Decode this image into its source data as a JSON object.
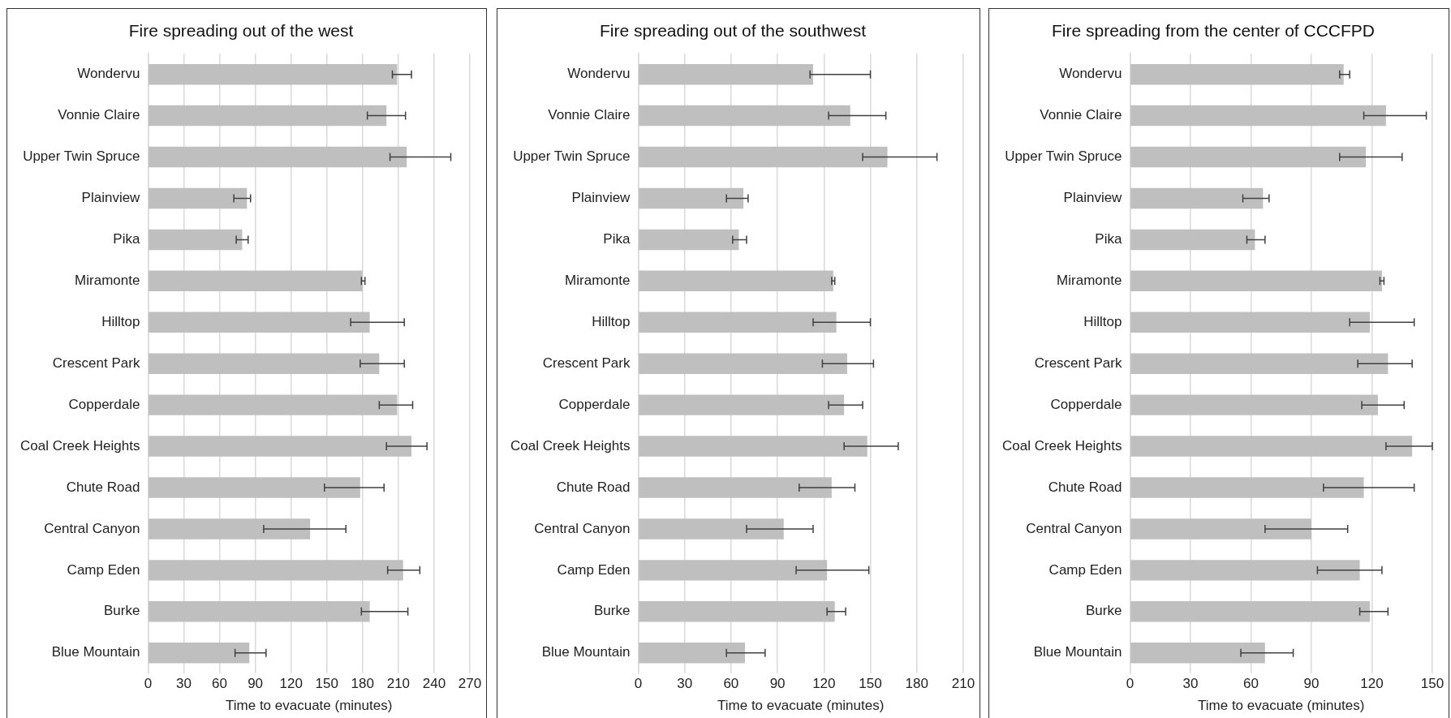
{
  "chart_data": [
    {
      "type": "bar",
      "orientation": "horizontal",
      "title": "Fire spreading out of the west",
      "xlabel": "Time to evacuate (minutes)",
      "color": "#bfbfbf",
      "grid": "x",
      "categories": [
        "Wondervu",
        "Vonnie Claire",
        "Upper Twin Spruce",
        "Plainview",
        "Pika",
        "Miramonte",
        "Hilltop",
        "Crescent Park",
        "Copperdale",
        "Coal Creek Heights",
        "Chute Road",
        "Central Canyon",
        "Camp Eden",
        "Burke",
        "Blue Mountain"
      ],
      "values": [
        209,
        200,
        217,
        83,
        79,
        180,
        186,
        194,
        209,
        221,
        178,
        136,
        214,
        186,
        85
      ],
      "errors": [
        [
          205,
          221
        ],
        [
          184,
          216
        ],
        [
          203,
          254
        ],
        [
          72,
          86
        ],
        [
          74,
          84
        ],
        [
          179,
          182
        ],
        [
          170,
          215
        ],
        [
          178,
          215
        ],
        [
          194,
          222
        ],
        [
          200,
          234
        ],
        [
          148,
          198
        ],
        [
          97,
          166
        ],
        [
          201,
          228
        ],
        [
          179,
          218
        ],
        [
          73,
          99
        ]
      ],
      "xlim": [
        0,
        270
      ],
      "xticks": [
        0,
        30,
        60,
        90,
        120,
        150,
        180,
        210,
        240,
        270
      ]
    },
    {
      "type": "bar",
      "orientation": "horizontal",
      "title": "Fire spreading out of the southwest",
      "xlabel": "Time to evacuate (minutes)",
      "color": "#bfbfbf",
      "grid": "x",
      "categories": [
        "Wondervu",
        "Vonnie Claire",
        "Upper Twin Spruce",
        "Plainview",
        "Pika",
        "Miramonte",
        "Hilltop",
        "Crescent Park",
        "Copperdale",
        "Coal Creek Heights",
        "Chute Road",
        "Central Canyon",
        "Camp Eden",
        "Burke",
        "Blue Mountain"
      ],
      "values": [
        113,
        137,
        161,
        68,
        65,
        126,
        128,
        135,
        133,
        148,
        125,
        94,
        122,
        127,
        69
      ],
      "errors": [
        [
          111,
          150
        ],
        [
          123,
          160
        ],
        [
          145,
          193
        ],
        [
          57,
          71
        ],
        [
          61,
          70
        ],
        [
          125,
          127
        ],
        [
          113,
          150
        ],
        [
          119,
          152
        ],
        [
          123,
          145
        ],
        [
          133,
          168
        ],
        [
          104,
          140
        ],
        [
          70,
          113
        ],
        [
          102,
          149
        ],
        [
          122,
          134
        ],
        [
          57,
          82
        ]
      ],
      "xlim": [
        0,
        210
      ],
      "xticks": [
        0,
        30,
        60,
        90,
        120,
        150,
        180,
        210
      ]
    },
    {
      "type": "bar",
      "orientation": "horizontal",
      "title": "Fire spreading from the center of CCCFPD",
      "xlabel": "Time to evacuate (minutes)",
      "color": "#bfbfbf",
      "grid": "x",
      "categories": [
        "Wondervu",
        "Vonnie Claire",
        "Upper Twin Spruce",
        "Plainview",
        "Pika",
        "Miramonte",
        "Hilltop",
        "Crescent Park",
        "Copperdale",
        "Coal Creek Heights",
        "Chute Road",
        "Central Canyon",
        "Camp Eden",
        "Burke",
        "Blue Mountain"
      ],
      "values": [
        106,
        127,
        117,
        66,
        62,
        125,
        119,
        128,
        123,
        140,
        116,
        90,
        114,
        119,
        67
      ],
      "errors": [
        [
          104,
          109
        ],
        [
          116,
          147
        ],
        [
          104,
          135
        ],
        [
          56,
          69
        ],
        [
          58,
          67
        ],
        [
          124,
          126
        ],
        [
          109,
          141
        ],
        [
          113,
          140
        ],
        [
          115,
          136
        ],
        [
          127,
          150
        ],
        [
          96,
          141
        ],
        [
          67,
          108
        ],
        [
          93,
          125
        ],
        [
          114,
          128
        ],
        [
          55,
          81
        ]
      ],
      "xlim": [
        0,
        150
      ],
      "xticks": [
        0,
        30,
        60,
        90,
        120,
        150
      ]
    }
  ]
}
